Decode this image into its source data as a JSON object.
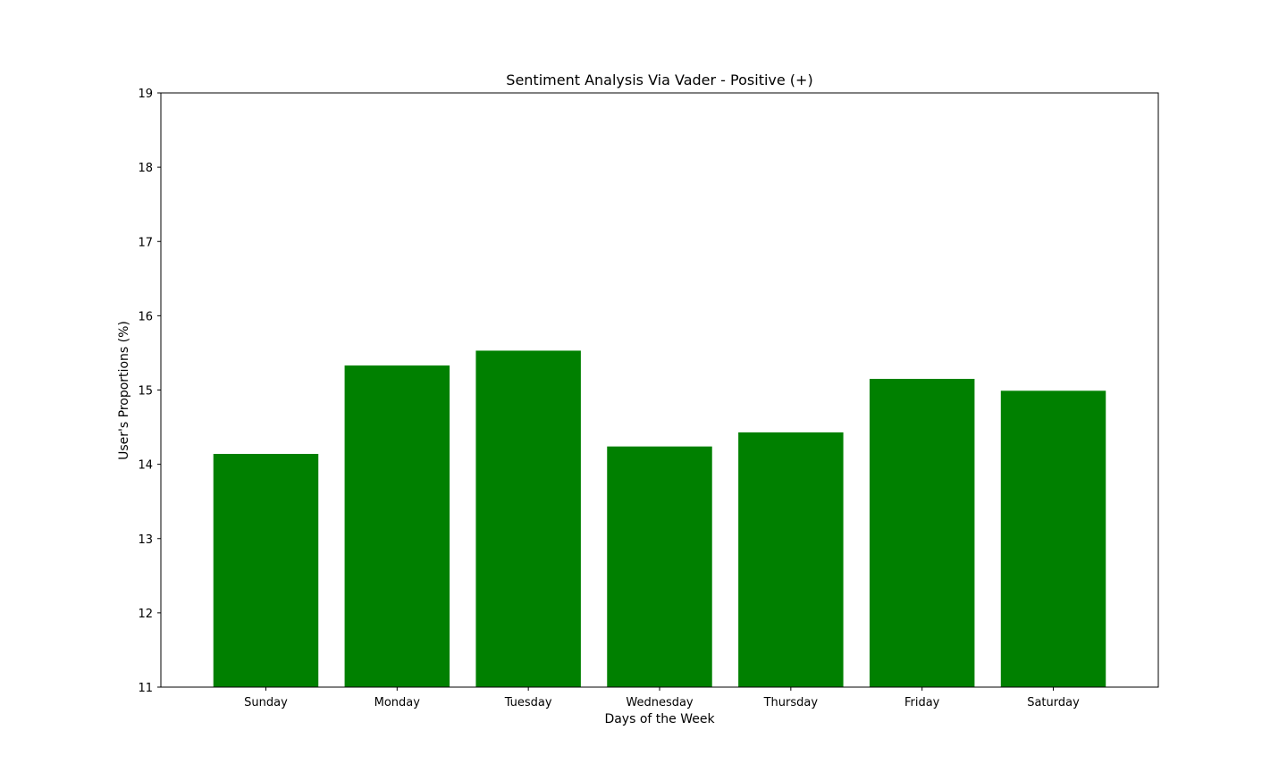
{
  "chart_data": {
    "type": "bar",
    "title": "Sentiment Analysis Via Vader - Positive (+)",
    "xlabel": "Days of the Week",
    "ylabel": "User's Proportions (%)",
    "categories": [
      "Sunday",
      "Monday",
      "Tuesday",
      "Wednesday",
      "Thursday",
      "Friday",
      "Saturday"
    ],
    "values": [
      14.14,
      15.33,
      15.53,
      14.24,
      14.43,
      15.15,
      14.99
    ],
    "ylim": [
      11,
      19
    ],
    "yticks": [
      "11",
      "12",
      "13",
      "14",
      "15",
      "16",
      "17",
      "18",
      "19"
    ],
    "bar_color": "#008000",
    "grid": false,
    "legend": "none"
  }
}
